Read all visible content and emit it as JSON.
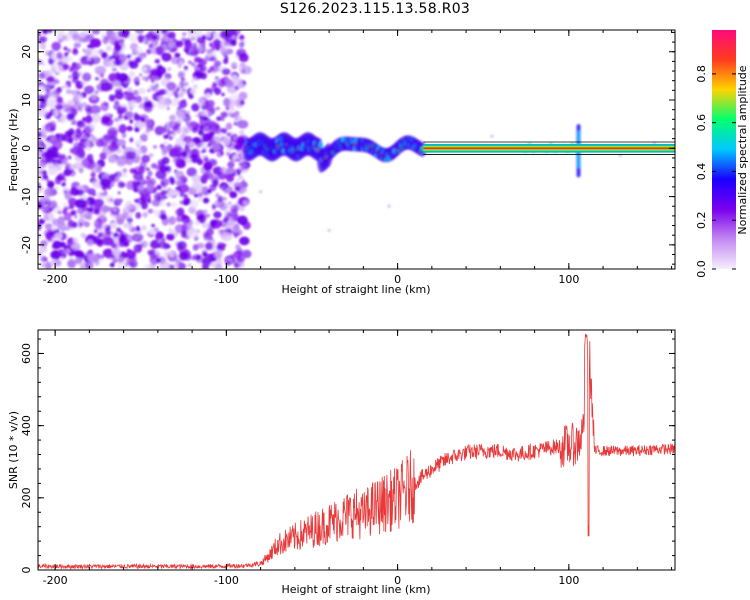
{
  "title": "S126.2023.115.13.58.R03",
  "chart_data": [
    {
      "type": "heatmap",
      "xlabel": "Height of straight line (km)",
      "ylabel": "Frequency (Hz)",
      "xlim": [
        -210,
        162
      ],
      "ylim": [
        -25,
        24.5
      ],
      "x_ticks": [
        -200,
        -100,
        0,
        100
      ],
      "y_ticks": [
        -20,
        -10,
        0,
        10,
        20
      ],
      "colorbar": {
        "label": "Normalized spectral amplitude",
        "range": [
          0.0,
          0.98
        ],
        "ticks": [
          "0.0",
          "0.2",
          "0.4",
          "0.6",
          "0.8"
        ],
        "colors": [
          "#f6eefe",
          "#c488f2",
          "#7a00ee",
          "#1a00ff",
          "#00c8ff",
          "#00ff70",
          "#ffd400",
          "#ff3c1e",
          "#ff0a78"
        ]
      },
      "description_regions": [
        {
          "x_range": [
            -210,
            -88
          ],
          "content": "broadband noise"
        },
        {
          "x_range": [
            -88,
            15
          ],
          "content": "signal with frequency wander near 0 Hz"
        },
        {
          "x_range": [
            15,
            162
          ],
          "content": "steady carrier at 0 Hz, spike near x=105"
        }
      ]
    },
    {
      "type": "line",
      "xlabel": "Height of straight line (km)",
      "ylabel": "SNR (10 * v/v)",
      "xlim": [
        -210,
        162
      ],
      "ylim": [
        0,
        665
      ],
      "x_ticks": [
        -200,
        -100,
        0,
        100
      ],
      "y_ticks": [
        0,
        200,
        400,
        600
      ],
      "series": [
        {
          "color": "#e8393a",
          "x": [
            -210,
            -160,
            -110,
            -90,
            -80,
            -75,
            -70,
            -60,
            -50,
            -40,
            -30,
            -25,
            -20,
            -15,
            -10,
            0,
            10,
            20,
            30,
            40,
            50,
            60,
            70,
            80,
            90,
            100,
            105,
            108,
            110,
            112,
            115,
            120,
            130,
            140,
            150,
            162
          ],
          "y": [
            10,
            10,
            10,
            12,
            18,
            40,
            70,
            90,
            110,
            130,
            150,
            160,
            150,
            170,
            180,
            200,
            240,
            280,
            310,
            325,
            330,
            330,
            320,
            330,
            340,
            345,
            350,
            380,
            500,
            600,
            330,
            330,
            330,
            330,
            335,
            335
          ]
        }
      ]
    }
  ]
}
